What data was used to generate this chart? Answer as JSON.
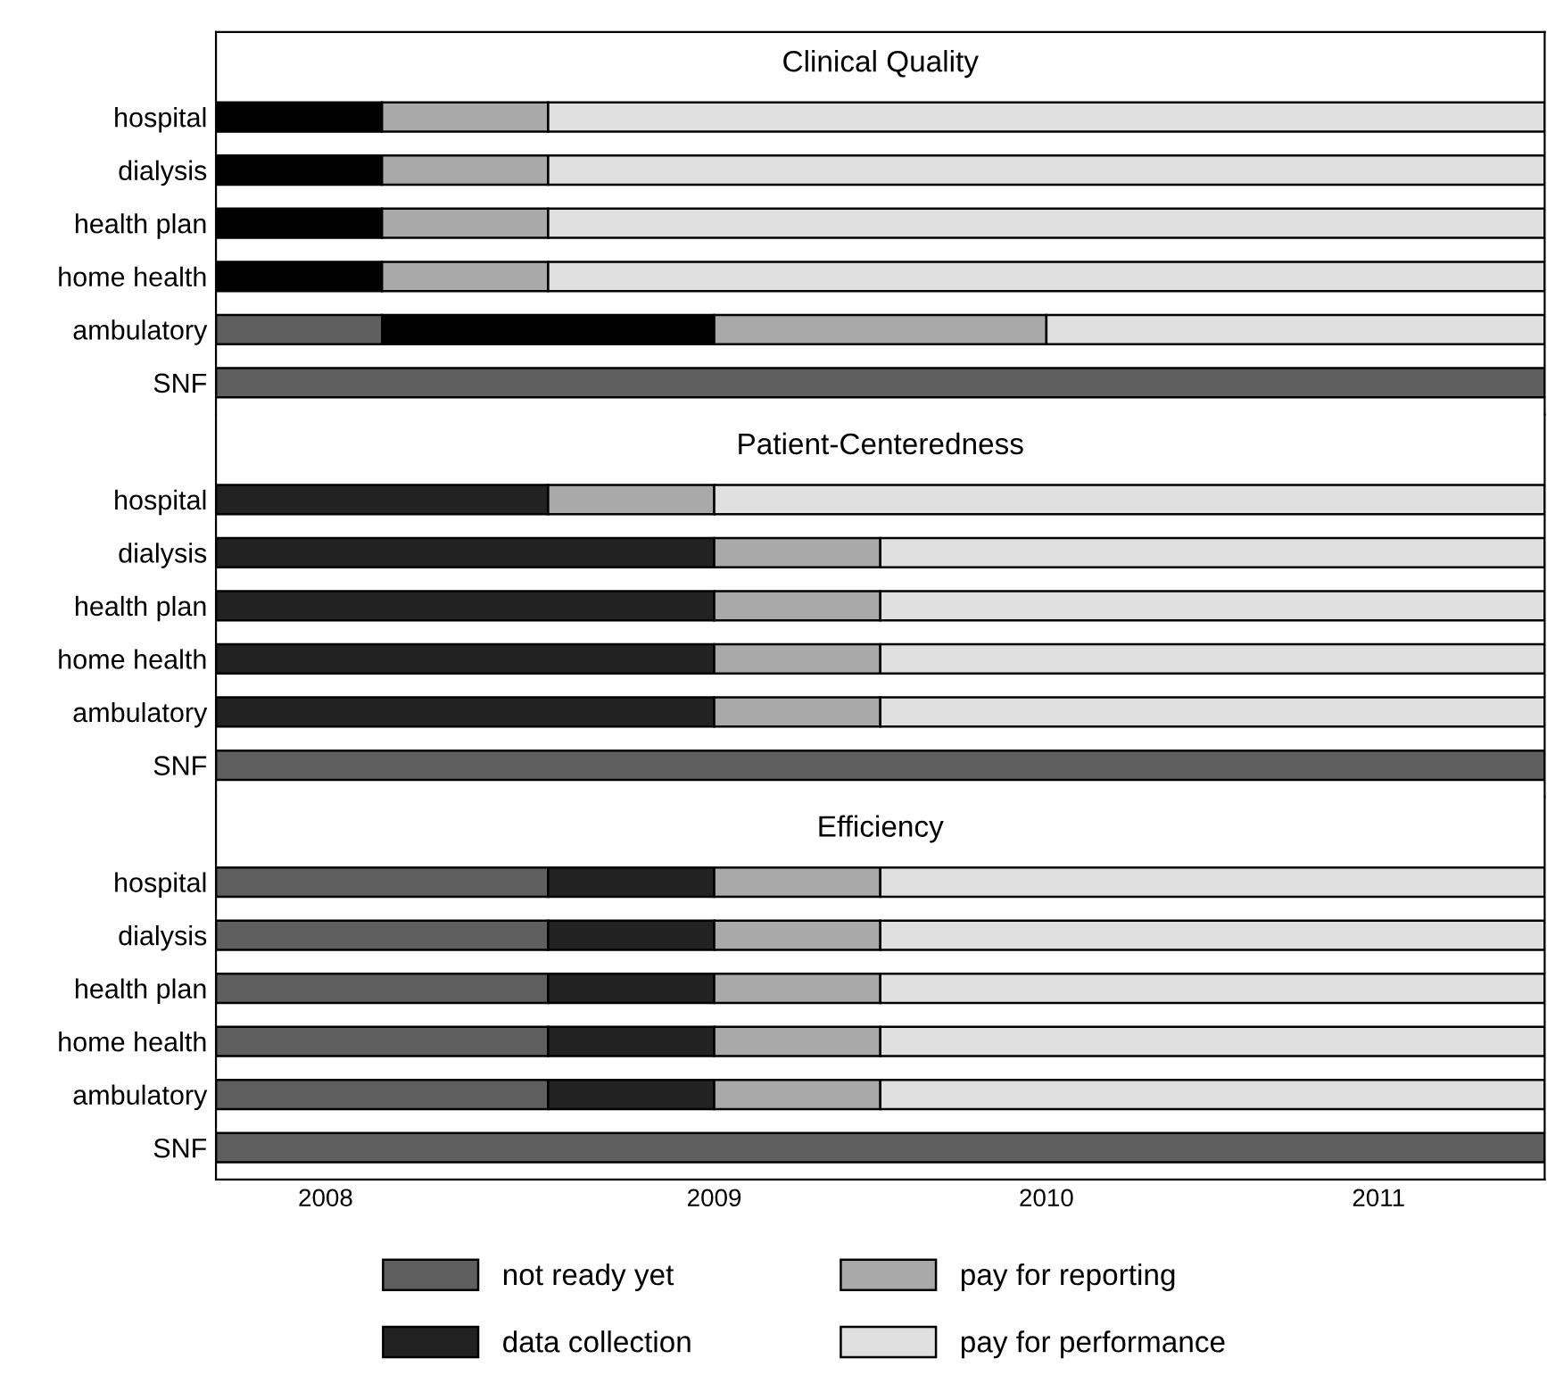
{
  "chart_data": [
    {
      "type": "bar",
      "orientation": "horizontal",
      "title": "Clinical Quality",
      "tick_labels": "y",
      "legend": false,
      "categories": [
        "hospital",
        "dialysis",
        "health plan",
        "home health",
        "ambulatory",
        "SNF"
      ],
      "xlim": [
        2007.5,
        2011.5
      ],
      "series": [
        {
          "color": "#5f5f5f",
          "base": [
            null,
            null,
            null,
            null,
            2007.5,
            2007.5
          ],
          "values": [
            null,
            null,
            null,
            null,
            0.5,
            4.0
          ]
        },
        {
          "color": "#000000",
          "base": [
            2007.5,
            2007.5,
            2007.5,
            2007.5,
            2008.0,
            null
          ],
          "values": [
            0.5,
            0.5,
            0.5,
            0.5,
            1.0,
            null
          ]
        },
        {
          "color": "#a9a9a9",
          "base": [
            2008.0,
            2008.0,
            2008.0,
            2008.0,
            2009.0,
            null
          ],
          "values": [
            0.5,
            0.5,
            0.5,
            0.5,
            1.0,
            null
          ]
        },
        {
          "color": "#e0e0e0",
          "base": [
            2008.5,
            2008.5,
            2008.5,
            2008.5,
            2010.0,
            null
          ],
          "values": [
            3.0,
            3.0,
            3.0,
            3.0,
            1.5,
            null
          ]
        }
      ]
    },
    {
      "type": "bar",
      "orientation": "horizontal",
      "title": "Patient-Centeredness",
      "tick_labels": "y",
      "legend": false,
      "categories": [
        "hospital",
        "dialysis",
        "health plan",
        "home health",
        "ambulatory",
        "SNF"
      ],
      "xlim": [
        2007.5,
        2011.5
      ],
      "series": [
        {
          "color": "#5f5f5f",
          "base": [
            null,
            null,
            null,
            null,
            null,
            2007.5
          ],
          "values": [
            null,
            null,
            null,
            null,
            null,
            4.0
          ]
        },
        {
          "color": "#222222",
          "base": [
            2007.5,
            2007.5,
            2007.5,
            2007.5,
            2007.5,
            null
          ],
          "values": [
            1.0,
            1.5,
            1.5,
            1.5,
            1.5,
            null
          ]
        },
        {
          "color": "#a9a9a9",
          "base": [
            2008.5,
            2009.0,
            2009.0,
            2009.0,
            2009.0,
            null
          ],
          "values": [
            0.5,
            0.5,
            0.5,
            0.5,
            0.5,
            null
          ]
        },
        {
          "color": "#e0e0e0",
          "base": [
            2009.0,
            2009.5,
            2009.5,
            2009.5,
            2009.5,
            null
          ],
          "values": [
            2.5,
            2.0,
            2.0,
            2.0,
            2.0,
            null
          ]
        }
      ]
    },
    {
      "type": "bar",
      "orientation": "horizontal",
      "title": "Efficiency",
      "legend": "bottom",
      "categories": [
        "hospital",
        "dialysis",
        "health plan",
        "home health",
        "ambulatory",
        "SNF"
      ],
      "xlim": [
        2007.5,
        2011.5
      ],
      "xticks": [
        {
          "value": 2007.83,
          "label": "2008"
        },
        2009,
        2010,
        2011
      ],
      "series": [
        {
          "name": "not ready yet",
          "color": "#5f5f5f",
          "base": [
            2007.5,
            2007.5,
            2007.5,
            2007.5,
            2007.5,
            2007.5
          ],
          "values": [
            1.0,
            1.0,
            1.0,
            1.0,
            1.0,
            4.0
          ]
        },
        {
          "name": "data collection",
          "color": "#222222",
          "base": [
            2008.5,
            2008.5,
            2008.5,
            2008.5,
            2008.5,
            null
          ],
          "values": [
            0.5,
            0.5,
            0.5,
            0.5,
            0.5,
            null
          ]
        },
        {
          "name": "pay for reporting",
          "color": "#a9a9a9",
          "base": [
            2009.0,
            2009.0,
            2009.0,
            2009.0,
            2009.0,
            null
          ],
          "values": [
            0.5,
            0.5,
            0.5,
            0.5,
            0.5,
            null
          ]
        },
        {
          "name": "pay for performance",
          "color": "#e0e0e0",
          "base": [
            2009.5,
            2009.5,
            2009.5,
            2009.5,
            2009.5,
            null
          ],
          "values": [
            2.0,
            2.0,
            2.0,
            2.0,
            2.0,
            null
          ]
        }
      ]
    }
  ]
}
